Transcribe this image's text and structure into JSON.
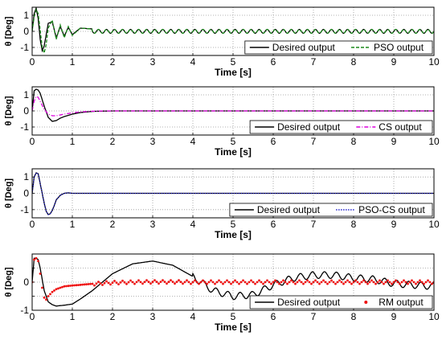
{
  "chart_data": [
    {
      "type": "line",
      "xlabel": "Time [s]",
      "ylabel": "θ [Deg]",
      "xlim": [
        0,
        10
      ],
      "ylim": [
        -1.5,
        1.5
      ],
      "xticks": [
        0,
        1,
        2,
        3,
        4,
        5,
        6,
        7,
        8,
        9,
        10
      ],
      "yticks": [
        -1,
        0,
        1
      ],
      "grid": true,
      "legend_position": "bottom-right",
      "series": [
        {
          "name": "Desired output",
          "color": "#000000",
          "style": "solid",
          "x": [
            0,
            0.05,
            0.1,
            0.15,
            0.2,
            0.25,
            0.3,
            0.35,
            0.4,
            0.5,
            0.6,
            0.7,
            0.8,
            0.9,
            1.0,
            1.2,
            1.5,
            2,
            3,
            4,
            5,
            6,
            7,
            8,
            9,
            10
          ],
          "y": [
            0,
            1.1,
            1.45,
            0.8,
            -0.5,
            -1.2,
            -0.9,
            -0.2,
            0.5,
            0.6,
            -0.4,
            0.3,
            -0.3,
            0.25,
            -0.2,
            0.2,
            0.15,
            0.12,
            0.12,
            0.12,
            0.12,
            0.12,
            0.12,
            0.12,
            0.12,
            0.12
          ],
          "oscillation": {
            "amplitude": 0.12,
            "period": 0.2
          }
        },
        {
          "name": "PSO output",
          "color": "#1c8a1c",
          "style": "dashed",
          "x": [
            0,
            0.05,
            0.1,
            0.15,
            0.2,
            0.25,
            0.3,
            0.35,
            0.4,
            0.5,
            0.6,
            0.7,
            0.8,
            0.9,
            1.0,
            1.2,
            1.5,
            2,
            3,
            4,
            5,
            6,
            7,
            8,
            9,
            10
          ],
          "y": [
            0,
            0.9,
            1.35,
            1.1,
            0.1,
            -1.0,
            -1.35,
            -0.8,
            0.2,
            0.7,
            -0.5,
            0.4,
            -0.4,
            0.3,
            -0.25,
            0.2,
            0.15,
            0.12,
            0.12,
            0.12,
            0.12,
            0.12,
            0.12,
            0.12,
            0.12,
            0.12
          ],
          "oscillation": {
            "amplitude": 0.12,
            "period": 0.2
          }
        }
      ]
    },
    {
      "type": "line",
      "xlabel": "Time [s]",
      "ylabel": "θ [Deg]",
      "xlim": [
        0,
        10
      ],
      "ylim": [
        -1.5,
        1.5
      ],
      "xticks": [
        0,
        1,
        2,
        3,
        4,
        5,
        6,
        7,
        8,
        9,
        10
      ],
      "yticks": [
        -1,
        0,
        1
      ],
      "grid": true,
      "legend_position": "bottom-right",
      "series": [
        {
          "name": "Desired output",
          "color": "#000000",
          "style": "solid",
          "x": [
            0,
            0.05,
            0.1,
            0.15,
            0.2,
            0.3,
            0.4,
            0.5,
            0.6,
            0.7,
            0.8,
            1.0,
            1.2,
            1.5,
            1.8,
            2.0,
            10
          ],
          "y": [
            0,
            1.25,
            1.35,
            1.3,
            1.1,
            0.3,
            -0.4,
            -0.65,
            -0.6,
            -0.45,
            -0.35,
            -0.2,
            -0.1,
            -0.03,
            -0.01,
            0,
            0
          ]
        },
        {
          "name": "CS output",
          "color": "#dd00dd",
          "style": "dashdot",
          "x": [
            0,
            0.05,
            0.1,
            0.15,
            0.2,
            0.3,
            0.4,
            0.5,
            0.6,
            0.7,
            0.8,
            1.0,
            1.2,
            1.5,
            1.8,
            2.0,
            10
          ],
          "y": [
            0,
            0.6,
            0.9,
            0.85,
            0.6,
            0.1,
            -0.2,
            -0.3,
            -0.3,
            -0.25,
            -0.2,
            -0.12,
            -0.06,
            -0.02,
            0,
            0,
            0
          ]
        }
      ]
    },
    {
      "type": "line",
      "xlabel": "Time [s]",
      "ylabel": "θ [Deg]",
      "xlim": [
        0,
        10
      ],
      "ylim": [
        -1.5,
        1.5
      ],
      "xticks": [
        0,
        1,
        2,
        3,
        4,
        5,
        6,
        7,
        8,
        9,
        10
      ],
      "yticks": [
        -1,
        0,
        1
      ],
      "grid": true,
      "legend_position": "bottom-right",
      "series": [
        {
          "name": "Desired output",
          "color": "#000000",
          "style": "solid",
          "x": [
            0,
            0.05,
            0.1,
            0.15,
            0.2,
            0.25,
            0.3,
            0.35,
            0.4,
            0.45,
            0.5,
            0.55,
            0.6,
            0.7,
            0.8,
            0.9,
            1.0,
            1.2,
            10
          ],
          "y": [
            0,
            1.0,
            1.25,
            1.2,
            0.6,
            0.0,
            -0.6,
            -1.1,
            -1.3,
            -1.25,
            -1.05,
            -0.75,
            -0.4,
            -0.12,
            0.0,
            0.03,
            0.0,
            0,
            0
          ]
        },
        {
          "name": "PSO-CS output",
          "color": "#2222cc",
          "style": "dotted",
          "x": [
            0,
            0.05,
            0.1,
            0.15,
            0.2,
            0.25,
            0.3,
            0.35,
            0.4,
            0.45,
            0.5,
            0.55,
            0.6,
            0.7,
            0.8,
            0.9,
            1.0,
            1.2,
            10
          ],
          "y": [
            0,
            1.0,
            1.25,
            1.2,
            0.6,
            0.0,
            -0.6,
            -1.1,
            -1.3,
            -1.25,
            -1.05,
            -0.75,
            -0.4,
            -0.12,
            0.0,
            0.03,
            0.0,
            0,
            0
          ]
        }
      ]
    },
    {
      "type": "line",
      "xlabel": "Time [s]",
      "ylabel": "θ [Deg]",
      "xlim": [
        0,
        10
      ],
      "ylim": [
        -1,
        1
      ],
      "xticks": [
        0,
        1,
        2,
        3,
        4,
        5,
        6,
        7,
        8,
        9,
        10
      ],
      "yticks": [
        -1,
        -0.5,
        0,
        0.5
      ],
      "yticklabels": [
        "-1",
        "",
        "0",
        ""
      ],
      "grid": true,
      "legend_position": "bottom-right",
      "series": [
        {
          "name": "Desired output",
          "color": "#000000",
          "style": "solid",
          "x": [
            0,
            0.05,
            0.1,
            0.15,
            0.2,
            0.3,
            0.4,
            0.5,
            0.6,
            0.8,
            1.0,
            1.2,
            1.5,
            2.0,
            2.5,
            3.0,
            3.5,
            4.0,
            4.5,
            5.0,
            5.5,
            6.0,
            6.5,
            7.0,
            7.5,
            8.0,
            8.5,
            9.0,
            9.5,
            10
          ],
          "y": [
            0,
            0.85,
            0.85,
            0.8,
            0.5,
            -0.3,
            -0.7,
            -0.8,
            -0.85,
            -0.82,
            -0.78,
            -0.6,
            -0.3,
            0.3,
            0.65,
            0.75,
            0.6,
            0.2,
            -0.3,
            -0.5,
            -0.45,
            -0.1,
            0.15,
            0.25,
            0.25,
            0.15,
            0.1,
            -0.05,
            -0.1,
            -0.15
          ],
          "oscillation": {
            "amplitude": 0.12,
            "period": 0.3,
            "from": 4.0
          }
        },
        {
          "name": "RM output",
          "color": "#ee1111",
          "style": "markers",
          "x": [
            0,
            0.05,
            0.1,
            0.15,
            0.2,
            0.25,
            0.3,
            0.35,
            0.4,
            0.5,
            0.6,
            0.7,
            0.8,
            1.0,
            1.5,
            2.0,
            2.5,
            3.0,
            3.5,
            4.0,
            4.5,
            5.0,
            5.5,
            6.0,
            6.5,
            7.0,
            7.5,
            8.0,
            8.5,
            9.0,
            9.5,
            10
          ],
          "y": [
            0,
            0.8,
            0.85,
            0.75,
            0.3,
            -0.2,
            -0.55,
            -0.62,
            -0.5,
            -0.35,
            -0.25,
            -0.2,
            -0.15,
            -0.12,
            -0.06,
            -0.02,
            0.0,
            0.01,
            0.01,
            0,
            0,
            0,
            0,
            0,
            0,
            0,
            0,
            0,
            0,
            0,
            0,
            0
          ],
          "oscillation": {
            "amplitude": 0.06,
            "period": 0.2,
            "from": 1.5
          }
        }
      ]
    }
  ]
}
